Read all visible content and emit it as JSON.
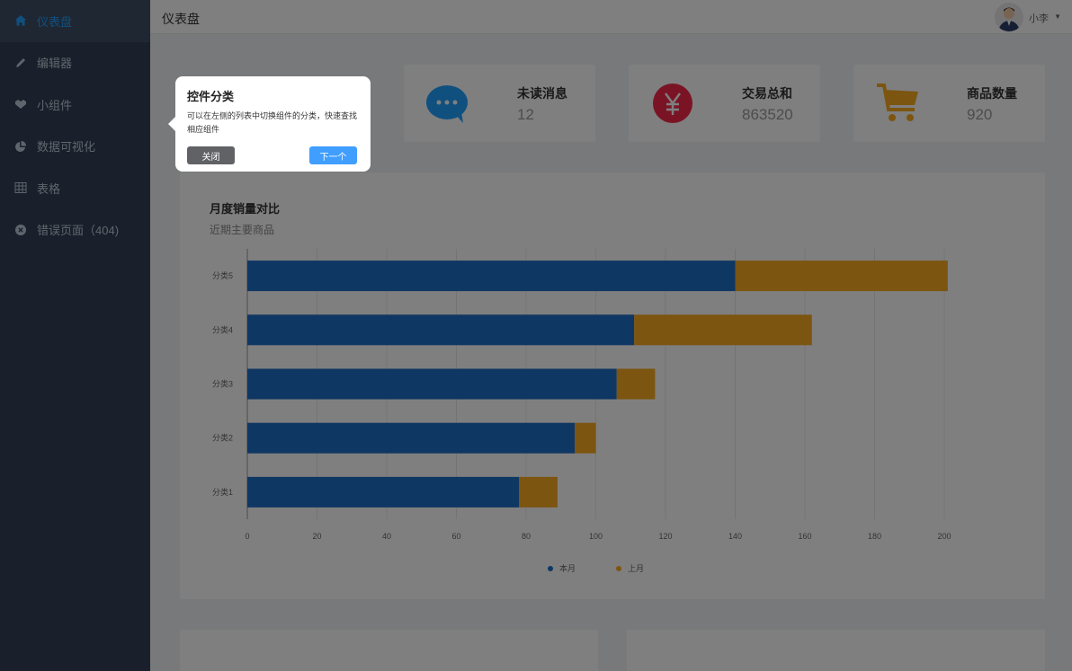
{
  "sidebar": {
    "items": [
      {
        "label": "仪表盘",
        "icon": "home-icon",
        "active": true
      },
      {
        "label": "编辑器",
        "icon": "pencil-icon",
        "active": false
      },
      {
        "label": "小组件",
        "icon": "widget-icon",
        "active": false
      },
      {
        "label": "数据可视化",
        "icon": "pie-chart-icon",
        "active": false
      },
      {
        "label": "表格",
        "icon": "table-icon",
        "active": false
      },
      {
        "label": "错误页面（404)",
        "icon": "error-circle-icon",
        "active": false
      }
    ]
  },
  "header": {
    "title": "仪表盘",
    "user_name": "小李",
    "caret": "▼"
  },
  "stats": [
    {
      "label": "未读消息",
      "value": "12",
      "icon": "chat-bubble-icon",
      "color": "#20a0ff"
    },
    {
      "label": "交易总和",
      "value": "863520",
      "icon": "yen-icon",
      "color": "#f5294b"
    },
    {
      "label": "商品数量",
      "value": "920",
      "icon": "shopping-cart-icon",
      "color": "#f9ab22"
    }
  ],
  "chart_card": {
    "title": "月度销量对比",
    "subtitle": "近期主要商品"
  },
  "chart_data": {
    "type": "bar",
    "orientation": "horizontal",
    "stacked": true,
    "categories": [
      "分类1",
      "分类2",
      "分类3",
      "分类4",
      "分类5"
    ],
    "series": [
      {
        "name": "本月",
        "values": [
          78,
          94,
          106,
          111,
          140
        ],
        "color": "#1f6ec7"
      },
      {
        "name": "上月",
        "values": [
          11,
          6,
          11,
          51,
          61
        ],
        "color": "#f9ab22"
      }
    ],
    "x_ticks": [
      "0",
      "20",
      "40",
      "60",
      "80",
      "100",
      "120",
      "140",
      "160",
      "180",
      "200"
    ],
    "xlim": [
      0,
      200
    ],
    "grid": true,
    "legend_position": "bottom"
  },
  "popover": {
    "title": "控件分类",
    "description": "可以在左侧的列表中切换组件的分类，快速查找相应组件",
    "close_label": "关闭",
    "next_label": "下一个"
  }
}
